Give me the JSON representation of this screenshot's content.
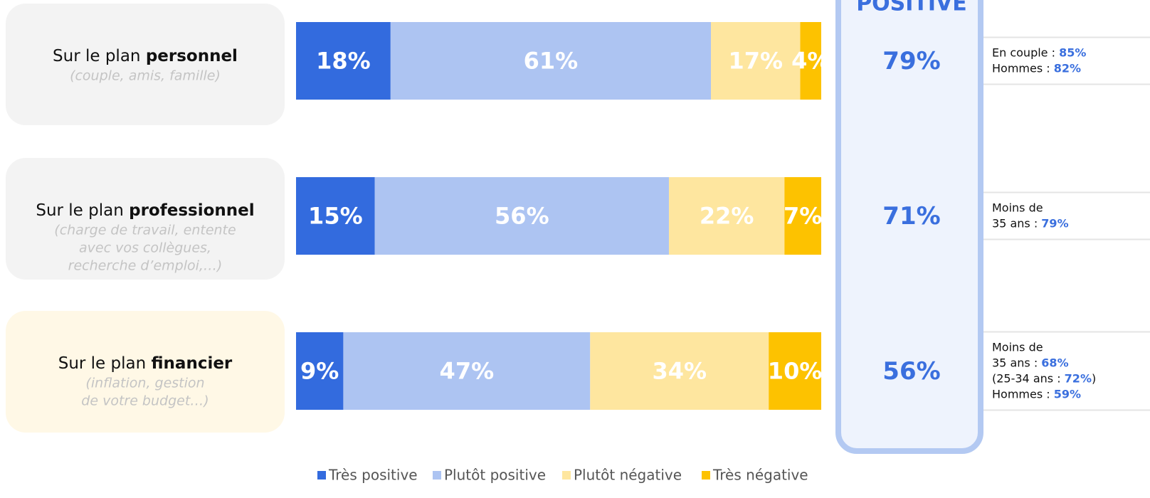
{
  "chart_data": {
    "type": "stacked_barh",
    "category_prefix": [
      "Sur le plan",
      "Sur le plan",
      "Sur le plan"
    ],
    "categories": [
      "personnel",
      "professionnel",
      "financier"
    ],
    "category_details": [
      [
        "(couple, amis, famille)"
      ],
      [
        "(charge de travail, entente",
        "avec vos collègues,",
        "recherche d’emploi,…)"
      ],
      [
        "(inflation, gestion",
        "de votre budget…)"
      ]
    ],
    "xlim": [
      0,
      100
    ],
    "series": [
      {
        "name": "Très positive",
        "color": "#336bde",
        "values": [
          18,
          15,
          9
        ],
        "value_labels": [
          "18%",
          "15%",
          "9%"
        ]
      },
      {
        "name": "Plutôt positive",
        "color": "#adc4f2",
        "values": [
          61,
          56,
          47
        ],
        "value_labels": [
          "61%",
          "56%",
          "47%"
        ]
      },
      {
        "name": "Plutôt négative",
        "color": "#fee69f",
        "values": [
          17,
          22,
          34
        ],
        "value_labels": [
          "17%",
          "22%",
          "34%"
        ]
      },
      {
        "name": "Très négative",
        "color": "#fdc200",
        "values": [
          4,
          7,
          10
        ],
        "value_labels": [
          "4%",
          "7%",
          "10%"
        ]
      }
    ],
    "total_title": "POSITIVE",
    "totals": {
      "values": [
        79,
        71,
        56
      ],
      "value_labels": [
        "79%",
        "71%",
        "56%"
      ]
    },
    "notes": [
      [
        [
          "En couple : ",
          "85%"
        ],
        [
          "Hommes : ",
          "82%"
        ]
      ],
      [
        [
          "Moins de"
        ],
        [
          "35 ans : ",
          "79%"
        ]
      ],
      [
        [
          "Moins de"
        ],
        [
          "35 ans : ",
          "68%"
        ],
        [
          "(25-34 ans : ",
          "72%",
          ")"
        ],
        [
          "Hommes : ",
          "59%"
        ]
      ]
    ]
  }
}
